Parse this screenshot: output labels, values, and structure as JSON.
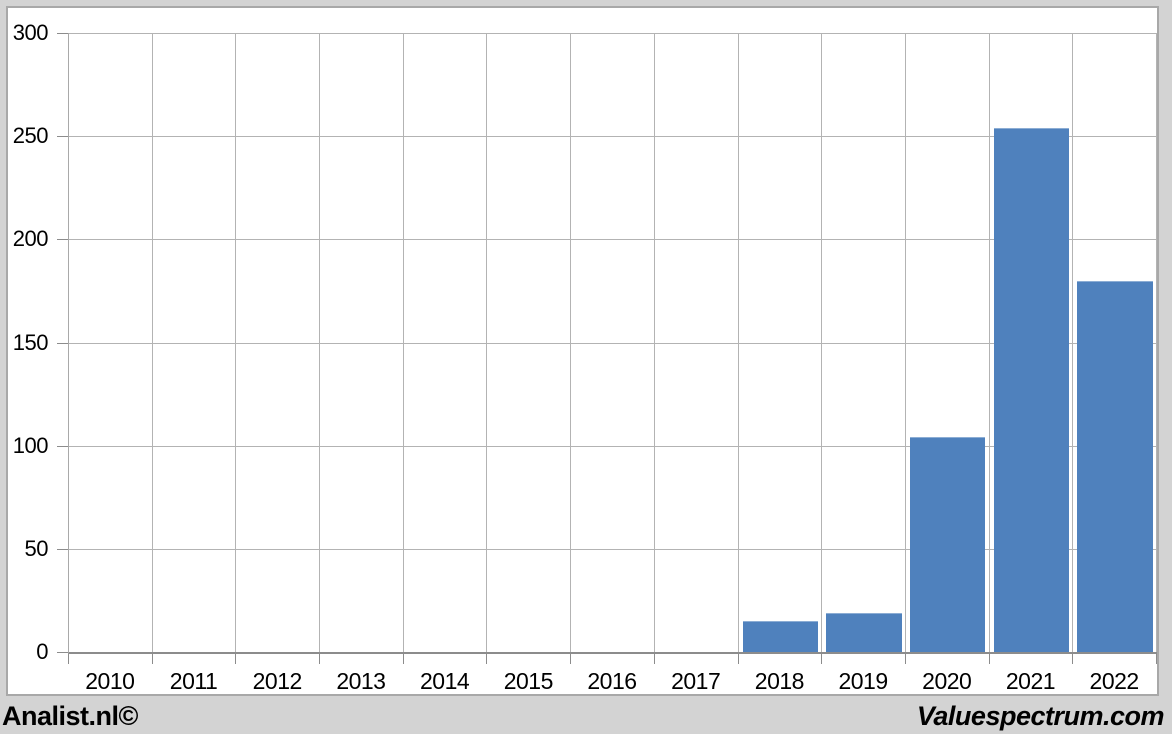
{
  "chart_data": {
    "type": "bar",
    "title": "",
    "xlabel": "",
    "ylabel": "",
    "categories": [
      "2010",
      "2011",
      "2012",
      "2013",
      "2014",
      "2015",
      "2016",
      "2017",
      "2018",
      "2019",
      "2020",
      "2021",
      "2022"
    ],
    "values": [
      0,
      0,
      0,
      0,
      0,
      0,
      0,
      0,
      15,
      19,
      104,
      254,
      180
    ],
    "ylim": [
      0,
      300
    ],
    "yticks": [
      0,
      50,
      100,
      150,
      200,
      250,
      300
    ],
    "grid": true,
    "legend": "none",
    "bar_color": "#4f81bd"
  },
  "footer": {
    "left": "Analist.nl©",
    "right": "Valuespectrum.com"
  },
  "colors": {
    "bar": "#4f81bd",
    "page_bg": "#d3d3d3",
    "panel_bg": "#ffffff",
    "panel_border": "#a8a8a8",
    "gridline": "#b3b3b3",
    "axis": "#8c8c8c",
    "text": "#000000"
  }
}
